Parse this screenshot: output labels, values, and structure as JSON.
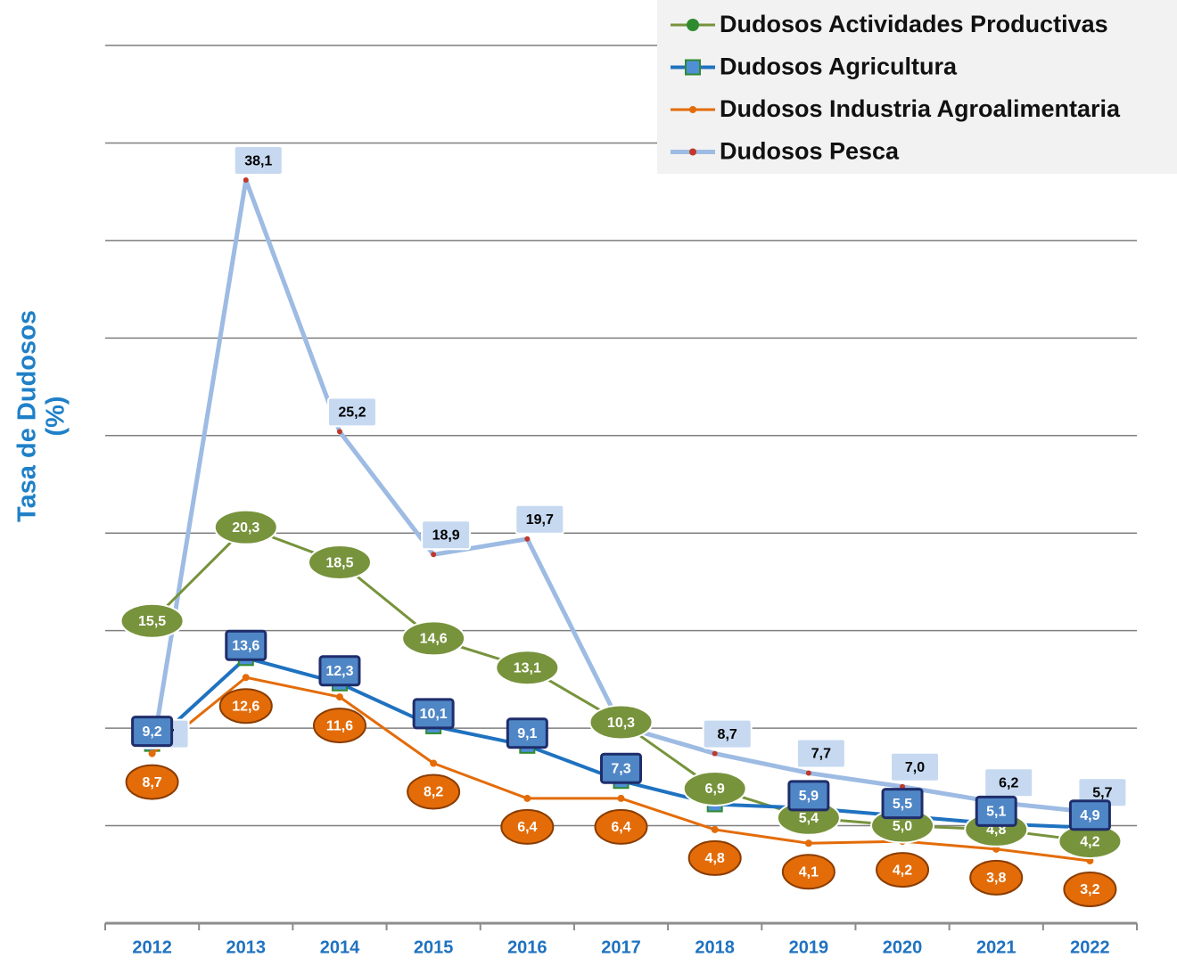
{
  "chart_data": {
    "type": "line",
    "y_label": [
      "Tasa de Dudosos",
      "(%)"
    ],
    "categories": [
      "2012",
      "2013",
      "2014",
      "2015",
      "2016",
      "2017",
      "2018",
      "2019",
      "2020",
      "2021",
      "2022"
    ],
    "series": [
      {
        "name": "Dudosos Actividades Productivas",
        "color": "#77933c",
        "values": [
          15.5,
          20.3,
          18.5,
          14.6,
          13.1,
          10.3,
          6.9,
          5.4,
          5.0,
          4.8,
          4.2
        ],
        "value_labels": [
          "15,5",
          "20,3",
          "18,5",
          "14,6",
          "13,1",
          "10,3",
          "6,9",
          "5,4",
          "5,0",
          "4,8",
          "4,2"
        ]
      },
      {
        "name": "Dudosos Agricultura",
        "color": "#1f72c0",
        "values": [
          9.2,
          13.6,
          12.3,
          10.1,
          9.1,
          7.3,
          6.1,
          5.9,
          5.5,
          5.1,
          4.9
        ],
        "value_labels": [
          "9,2",
          "13,6",
          "12,3",
          "10,1",
          "9,1",
          "7,3",
          null,
          "5,9",
          "5,5",
          "5,1",
          "4,9"
        ]
      },
      {
        "name": "Dudosos Industria Agroalimentaria",
        "color": "#e36c09",
        "values": [
          8.7,
          12.6,
          11.6,
          8.2,
          6.4,
          6.4,
          4.8,
          4.1,
          4.2,
          3.8,
          3.2
        ],
        "value_labels": [
          "8,7",
          "12,6",
          "11,6",
          "8,2",
          "6,4",
          "6,4",
          "4,8",
          "4,1",
          "4,2",
          "3,8",
          "3,2"
        ]
      },
      {
        "name": "Dudosos Pesca",
        "color": "#9dbbe3",
        "values": [
          8.7,
          38.1,
          25.2,
          18.9,
          19.7,
          10.1,
          8.7,
          7.7,
          7.0,
          6.2,
          5.7
        ],
        "value_labels": [
          "8,7",
          "38,1",
          "25,2",
          "18,9",
          "19,7",
          null,
          "8,7",
          "7,7",
          "7,0",
          "6,2",
          "5,7"
        ]
      }
    ],
    "ylim": [
      0,
      45
    ],
    "yticks": [
      0,
      5,
      10,
      15,
      20,
      25,
      30,
      35,
      40,
      45
    ],
    "grid": true,
    "legend": "top-right"
  }
}
